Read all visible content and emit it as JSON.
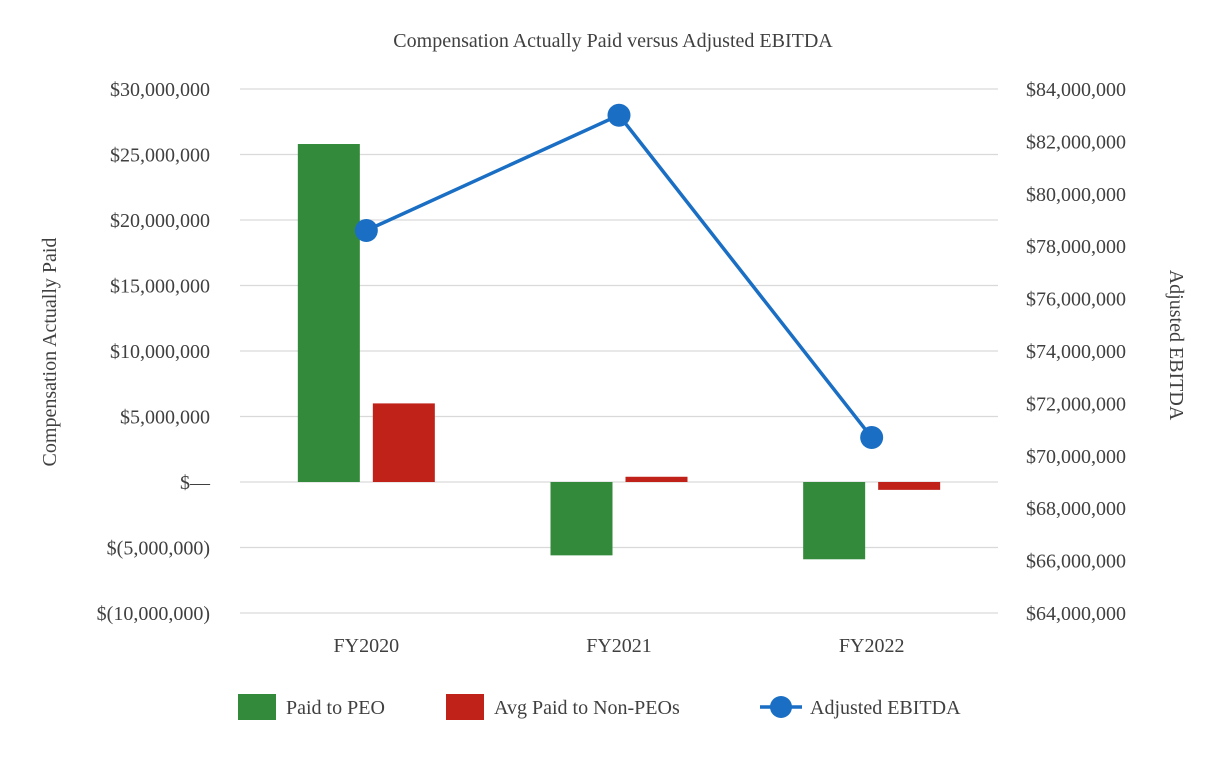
{
  "chart_data": {
    "type": "bar",
    "title": "Compensation Actually Paid versus Adjusted EBITDA",
    "categories": [
      "FY2020",
      "FY2021",
      "FY2022"
    ],
    "series": [
      {
        "name": "Paid to PEO",
        "kind": "bar",
        "axis": "left",
        "color": "#338a3a",
        "values": [
          25800000,
          -5600000,
          -5900000
        ]
      },
      {
        "name": "Avg Paid to Non-PEOs",
        "kind": "bar",
        "axis": "left",
        "color": "#c0221a",
        "values": [
          6000000,
          400000,
          -600000
        ]
      },
      {
        "name": "Adjusted EBITDA",
        "kind": "line",
        "axis": "right",
        "color": "#1a6fc4",
        "values": [
          78600000,
          83000000,
          70700000
        ]
      }
    ],
    "ylabel": "Compensation Actually Paid",
    "y2label": "Adjusted EBITDA",
    "ylim": [
      -10000000,
      30000000
    ],
    "y2lim": [
      64000000,
      84000000
    ],
    "yticks": [
      -10000000,
      -5000000,
      0,
      5000000,
      10000000,
      15000000,
      20000000,
      25000000,
      30000000
    ],
    "y2ticks": [
      64000000,
      66000000,
      68000000,
      70000000,
      72000000,
      74000000,
      76000000,
      78000000,
      80000000,
      82000000,
      84000000
    ],
    "ytick_labels": [
      "$(10,000,000)",
      "$(5,000,000)",
      "$—",
      "$5,000,000",
      "$10,000,000",
      "$15,000,000",
      "$20,000,000",
      "$25,000,000",
      "$30,000,000"
    ],
    "y2tick_labels": [
      "$64,000,000",
      "$66,000,000",
      "$68,000,000",
      "$70,000,000",
      "$72,000,000",
      "$74,000,000",
      "$76,000,000",
      "$78,000,000",
      "$80,000,000",
      "$82,000,000",
      "$84,000,000"
    ],
    "grid": true,
    "legend_position": "bottom"
  }
}
